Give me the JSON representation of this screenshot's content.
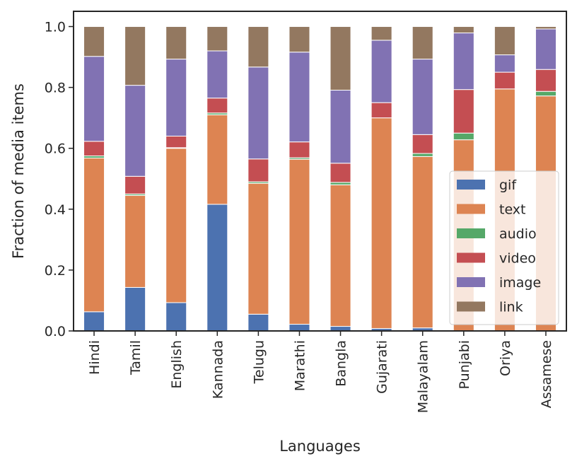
{
  "chart_data": {
    "type": "bar",
    "stacked": true,
    "title": "",
    "xlabel": "Languages",
    "ylabel": "Fraction of media items",
    "ylim": [
      0,
      1.05
    ],
    "yticks": [
      0.0,
      0.2,
      0.4,
      0.6,
      0.8,
      1.0
    ],
    "ytick_labels": [
      "0.0",
      "0.2",
      "0.4",
      "0.6",
      "0.8",
      "1.0"
    ],
    "legend_position": "lower-right",
    "categories": [
      "Hindi",
      "Tamil",
      "English",
      "Kannada",
      "Telugu",
      "Marathi",
      "Bangla",
      "Gujarati",
      "Malayalam",
      "Punjabi",
      "Oriya",
      "Assamese"
    ],
    "series": [
      {
        "name": "gif",
        "color": "#4c72b0",
        "values": [
          0.063,
          0.143,
          0.093,
          0.416,
          0.055,
          0.022,
          0.015,
          0.008,
          0.01,
          0.0,
          0.0,
          0.0
        ]
      },
      {
        "name": "text",
        "color": "#dd8452",
        "values": [
          0.505,
          0.302,
          0.507,
          0.294,
          0.43,
          0.542,
          0.465,
          0.692,
          0.563,
          0.628,
          0.795,
          0.772
        ]
      },
      {
        "name": "audio",
        "color": "#55a868",
        "values": [
          0.007,
          0.005,
          0.002,
          0.006,
          0.005,
          0.005,
          0.008,
          0.0,
          0.01,
          0.022,
          0.0,
          0.015
        ]
      },
      {
        "name": "video",
        "color": "#c44e52",
        "values": [
          0.048,
          0.058,
          0.038,
          0.049,
          0.075,
          0.052,
          0.063,
          0.05,
          0.062,
          0.143,
          0.055,
          0.072
        ]
      },
      {
        "name": "image",
        "color": "#8172b3",
        "values": [
          0.279,
          0.299,
          0.253,
          0.155,
          0.302,
          0.295,
          0.24,
          0.205,
          0.248,
          0.186,
          0.057,
          0.133
        ]
      },
      {
        "name": "link",
        "color": "#937860",
        "values": [
          0.098,
          0.193,
          0.107,
          0.08,
          0.133,
          0.084,
          0.209,
          0.045,
          0.107,
          0.021,
          0.093,
          0.008
        ]
      }
    ]
  }
}
